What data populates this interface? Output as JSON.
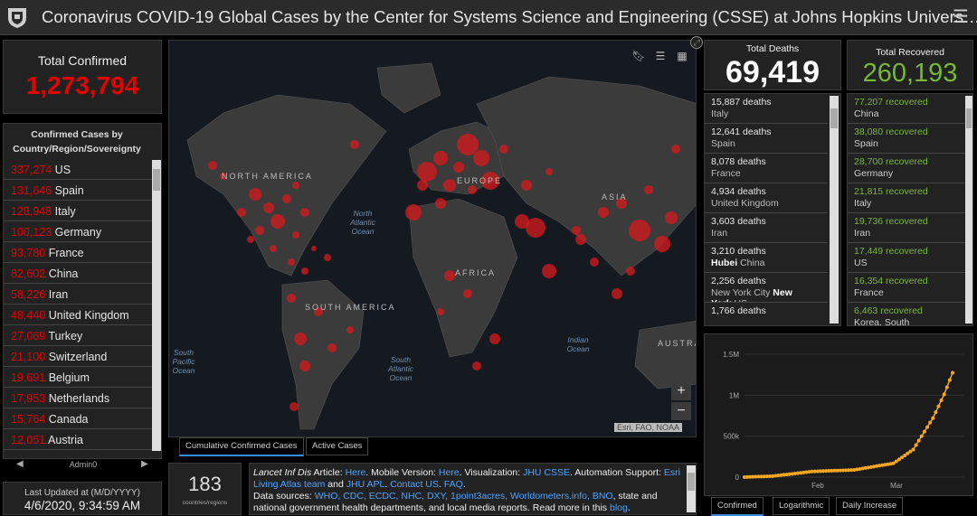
{
  "header": {
    "title": "Coronavirus COVID-19 Global Cases by the Center for Systems Science and Engineering (CSSE) at Johns Hopkins Univers…",
    "menu_icon": "hamburger-icon",
    "logo": "jhu-shield-logo"
  },
  "confirmed": {
    "label": "Total Confirmed",
    "value": "1,273,794"
  },
  "country_panel": {
    "heading_line1": "Confirmed Cases by",
    "heading_line2": "Country/Region/Sovereignty",
    "rows": [
      {
        "num": "337,274",
        "name": "US"
      },
      {
        "num": "131,646",
        "name": "Spain"
      },
      {
        "num": "128,948",
        "name": "Italy"
      },
      {
        "num": "100,123",
        "name": "Germany"
      },
      {
        "num": "93,780",
        "name": "France"
      },
      {
        "num": "82,602",
        "name": "China"
      },
      {
        "num": "58,226",
        "name": "Iran"
      },
      {
        "num": "48,440",
        "name": "United Kingdom"
      },
      {
        "num": "27,069",
        "name": "Turkey"
      },
      {
        "num": "21,100",
        "name": "Switzerland"
      },
      {
        "num": "19,691",
        "name": "Belgium"
      },
      {
        "num": "17,953",
        "name": "Netherlands"
      },
      {
        "num": "15,764",
        "name": "Canada"
      },
      {
        "num": "12,051",
        "name": "Austria"
      }
    ],
    "footer_label": "Admin0"
  },
  "updated": {
    "label": "Last Updated at (M/D/YYYY)",
    "value": "4/6/2020, 9:34:59 AM"
  },
  "map": {
    "labels": {
      "north_america": "NORTH AMERICA",
      "south_america": "SOUTH AMERICA",
      "europe": "EUROPE",
      "africa": "AFRICA",
      "asia": "ASIA",
      "australia": "AUSTRA"
    },
    "oceans": {
      "north_atlantic": "North Atlantic Ocean",
      "south_atlantic": "South Atlantic Ocean",
      "south_pacific": "South Pacific Ocean",
      "indian": "Indian Ocean"
    },
    "attribution": "Esri, FAO, NOAA",
    "zoom_in": "+",
    "zoom_out": "−"
  },
  "map_tabs": {
    "cumulative": "Cumulative Confirmed Cases",
    "active": "Active Cases"
  },
  "countries_count": {
    "value": "183",
    "label": "countries/regions"
  },
  "info": {
    "p1_a": "Lancet Inf Dis",
    "p1_b": " Article: ",
    "here1": "Here",
    "p1_c": ". Mobile Version: ",
    "here2": "Here",
    "p1_d": ". Visualization: ",
    "jhu_csse": "JHU CSSE",
    "p1_e": ". Automation Support: ",
    "esri": "Esri Living Atlas team",
    "p1_f": " and ",
    "jhu_apl": "JHU APL",
    "p1_g": ". ",
    "contact": "Contact US",
    "p1_h": ". ",
    "faq": "FAQ",
    "p1_i": ".",
    "p2_a": "Data sources: ",
    "sources": "WHO, CDC, ECDC, NHC, DXY, 1point3acres, Worldometers.info, BNO",
    "p2_b": ", state and national government health departments, and local media reports.  Read more in this ",
    "blog": "blog",
    "p2_c": "."
  },
  "deaths": {
    "label": "Total Deaths",
    "value": "69,419",
    "rows": [
      {
        "l1": "15,887 deaths",
        "l2": "Italy"
      },
      {
        "l1": "12,641 deaths",
        "l2": "Spain"
      },
      {
        "l1": "8,078 deaths",
        "l2": "France"
      },
      {
        "l1": "4,934 deaths",
        "l2": "United Kingdom"
      },
      {
        "l1": "3,603 deaths",
        "l2": "Iran"
      },
      {
        "l1": "3,210 deaths",
        "l2a": "Hubei",
        "l2b": " China"
      },
      {
        "l1": "2,256 deaths",
        "l2a": "New York City ",
        "l2b": "New",
        "l3a": "York",
        "l3b": " US"
      },
      {
        "l1": "1,766 deaths"
      }
    ]
  },
  "recovered": {
    "label": "Total Recovered",
    "value": "260,193",
    "rows": [
      {
        "num": "77,207",
        "word": " recovered",
        "name": "China"
      },
      {
        "num": "38,080",
        "word": " recovered",
        "name": "Spain"
      },
      {
        "num": "28,700",
        "word": " recovered",
        "name": "Germany"
      },
      {
        "num": "21,815",
        "word": " recovered",
        "name": "Italy"
      },
      {
        "num": "19,736",
        "word": " recovered",
        "name": "Iran"
      },
      {
        "num": "17,449",
        "word": " recovered",
        "name": "US"
      },
      {
        "num": "16,354",
        "word": " recovered",
        "name": "France"
      },
      {
        "num": "6,463",
        "word": " recovered",
        "name": "Korea, South"
      }
    ]
  },
  "chart": {
    "y_ticks": [
      "1.5M",
      "1M",
      "500k",
      "0"
    ],
    "x_ticks": [
      "Feb",
      "Mar"
    ],
    "color": "#f5a623"
  },
  "chart_data": {
    "type": "line",
    "x": [
      "Jan 22",
      "Feb 1",
      "Feb 15",
      "Mar 1",
      "Mar 15",
      "Mar 22",
      "Mar 29",
      "Apr 2",
      "Apr 5"
    ],
    "series": [
      {
        "values": [
          555,
          12038,
          69000,
          88370,
          169000,
          337000,
          720000,
          1010000,
          1273794
        ]
      }
    ],
    "ylim": [
      0,
      1500000
    ]
  },
  "chart_tabs": {
    "confirmed": "Confirmed",
    "log": "Logarithmic",
    "daily": "Daily Increase"
  }
}
